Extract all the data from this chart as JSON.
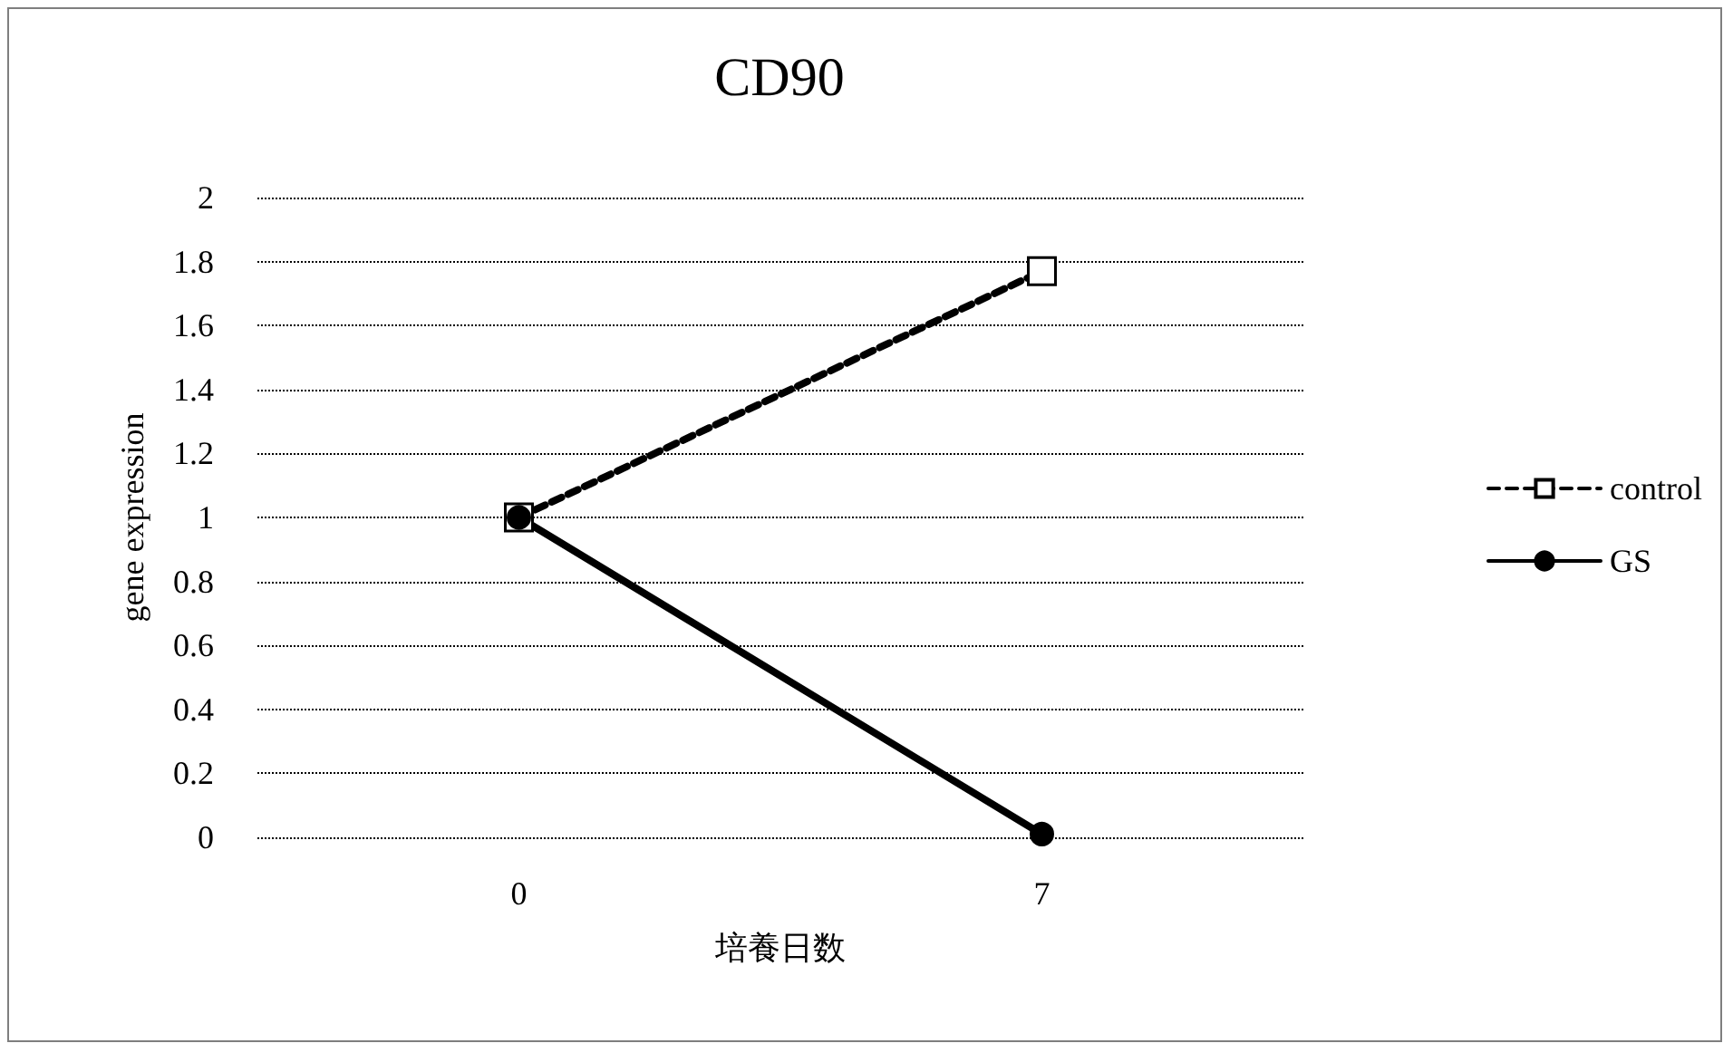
{
  "chart_data": {
    "type": "line",
    "title": "CD90",
    "xlabel": "培養日数",
    "ylabel": "gene expression",
    "categories": [
      "0",
      "7"
    ],
    "series": [
      {
        "name": "control",
        "color": "#000000",
        "values": [
          1,
          1.77
        ],
        "marker": "square",
        "line_style": "dashed"
      },
      {
        "name": "GS",
        "color": "#000000",
        "values": [
          1,
          0.01
        ],
        "marker": "circle",
        "line_style": "solid"
      }
    ],
    "ylim": [
      0,
      2
    ],
    "yticks": [
      0,
      0.2,
      0.4,
      0.6,
      0.8,
      1,
      1.2,
      1.4,
      1.6,
      1.8,
      2
    ],
    "grid": "y",
    "legend": "right"
  }
}
